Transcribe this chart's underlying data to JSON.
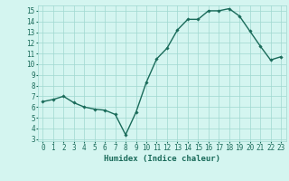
{
  "x": [
    0,
    1,
    2,
    3,
    4,
    5,
    6,
    7,
    8,
    9,
    10,
    11,
    12,
    13,
    14,
    15,
    16,
    17,
    18,
    19,
    20,
    21,
    22,
    23
  ],
  "y": [
    6.5,
    6.7,
    7.0,
    6.4,
    6.0,
    5.8,
    5.7,
    5.3,
    3.4,
    5.5,
    8.3,
    10.5,
    11.5,
    13.2,
    14.2,
    14.2,
    15.0,
    15.0,
    15.2,
    14.5,
    13.1,
    11.7,
    10.4,
    10.7
  ],
  "line_color": "#1a6b5a",
  "marker": "D",
  "marker_size": 1.8,
  "line_width": 1.0,
  "bg_color": "#d4f5f0",
  "grid_color": "#a0d8d0",
  "xlabel": "Humidex (Indice chaleur)",
  "xlim": [
    -0.5,
    23.5
  ],
  "ylim": [
    2.8,
    15.5
  ],
  "yticks": [
    3,
    4,
    5,
    6,
    7,
    8,
    9,
    10,
    11,
    12,
    13,
    14,
    15
  ],
  "xticks": [
    0,
    1,
    2,
    3,
    4,
    5,
    6,
    7,
    8,
    9,
    10,
    11,
    12,
    13,
    14,
    15,
    16,
    17,
    18,
    19,
    20,
    21,
    22,
    23
  ],
  "tick_fontsize": 5.5,
  "label_fontsize": 6.5,
  "tick_color": "#1a6b5a",
  "label_color": "#1a6b5a"
}
